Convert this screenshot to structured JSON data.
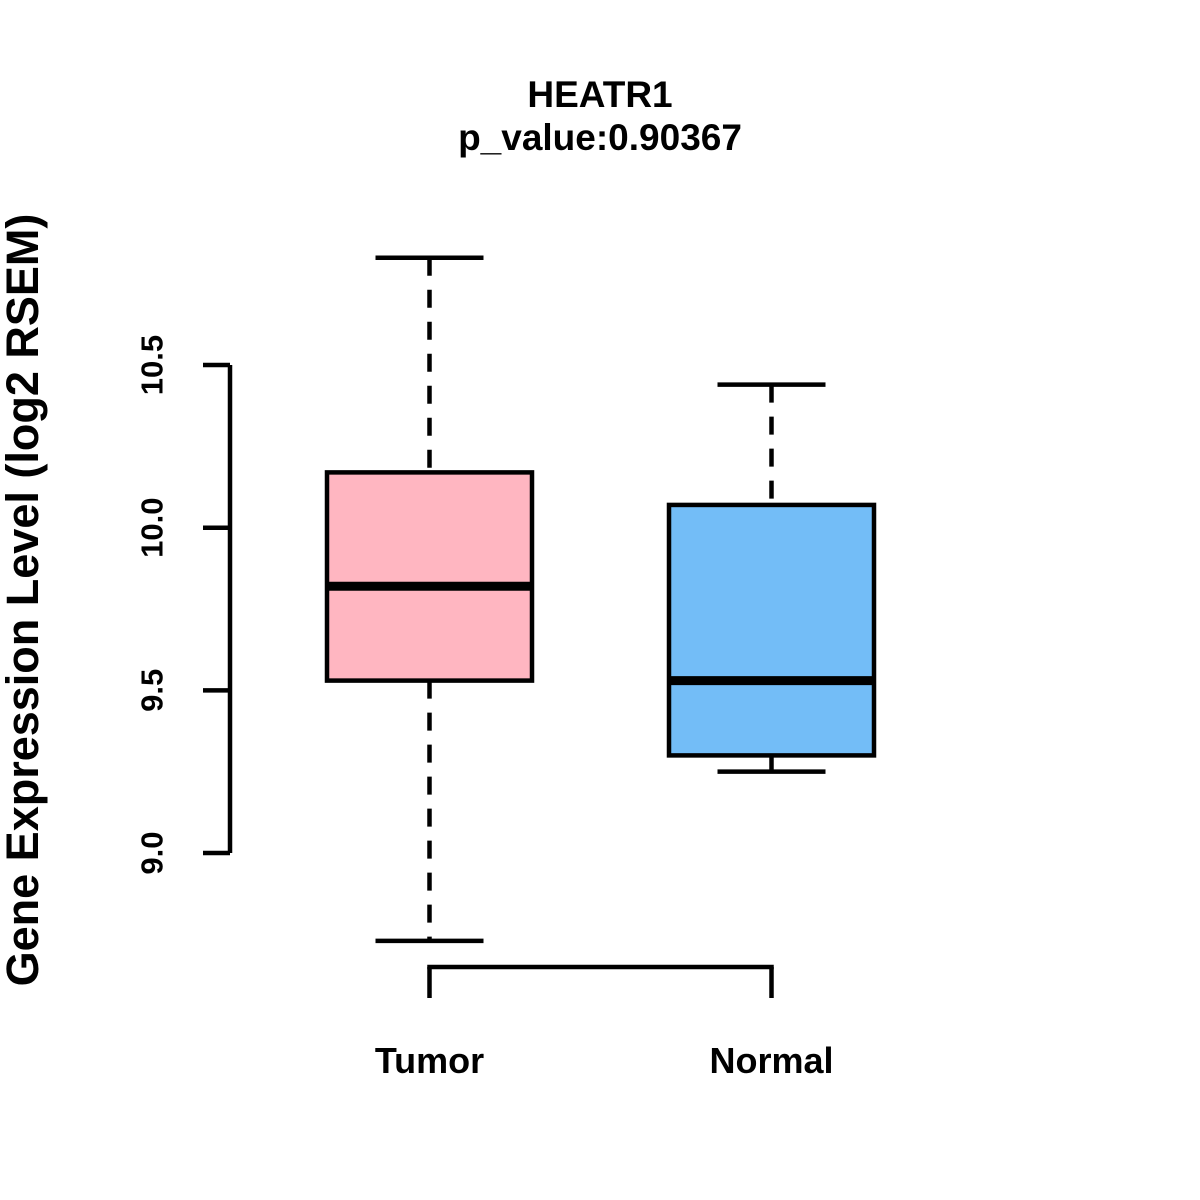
{
  "page": {
    "background_color": "#ffffff"
  },
  "chart_data": {
    "type": "boxplot",
    "title": "HEATR1",
    "subtitle": "p_value:0.90367",
    "ylabel": "Gene Expression Level (log2 RSEM)",
    "xlabel": "",
    "categories": [
      "Tumor",
      "Normal"
    ],
    "yticks": [
      9.0,
      9.5,
      10.0,
      10.5
    ],
    "ytick_labels": [
      "9.0",
      "9.5",
      "10.0",
      "10.5"
    ],
    "ylim": [
      8.6,
      10.95
    ],
    "grid": false,
    "legend": "none",
    "axis_color": "#000000",
    "series": [
      {
        "name": "Tumor",
        "color": "#FFB6C1",
        "border_color": "#000000",
        "whisker_low": 8.73,
        "q1": 9.53,
        "median": 9.82,
        "q3": 10.17,
        "whisker_high": 10.83
      },
      {
        "name": "Normal",
        "color": "#73BDF7",
        "border_color": "#000000",
        "whisker_low": 9.25,
        "q1": 9.3,
        "median": 9.53,
        "q3": 10.07,
        "whisker_high": 10.44
      }
    ]
  }
}
